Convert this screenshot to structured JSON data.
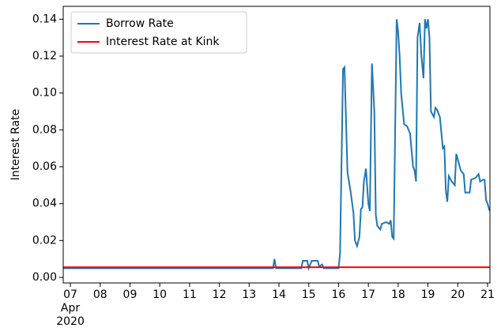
{
  "chart_data": {
    "type": "line",
    "ylabel": "Interest Rate",
    "series": [
      {
        "name": "Borrow Rate",
        "color": "#1f77b4",
        "x": [
          6.76,
          13.8,
          13.85,
          13.9,
          14.75,
          14.8,
          14.95,
          15.0,
          15.1,
          15.3,
          15.35,
          15.45,
          15.5,
          16.0,
          16.05,
          16.15,
          16.2,
          16.3,
          16.4,
          16.5,
          16.55,
          16.62,
          16.7,
          16.75,
          16.8,
          16.85,
          16.92,
          17.0,
          17.05,
          17.12,
          17.2,
          17.25,
          17.3,
          17.4,
          17.45,
          17.6,
          17.7,
          17.75,
          17.8,
          17.85,
          17.95,
          18.0,
          18.05,
          18.1,
          18.2,
          18.3,
          18.4,
          18.5,
          18.55,
          18.6,
          18.65,
          18.72,
          18.78,
          18.85,
          18.9,
          18.95,
          19.0,
          19.05,
          19.1,
          19.2,
          19.25,
          19.3,
          19.4,
          19.5,
          19.55,
          19.6,
          19.65,
          19.7,
          19.8,
          19.9,
          19.95,
          20.0,
          20.1,
          20.2,
          20.25,
          20.4,
          20.45,
          20.6,
          20.7,
          20.75,
          20.85,
          20.9,
          20.95,
          21.0,
          21.05,
          21.08
        ],
        "values": [
          0.005,
          0.005,
          0.01,
          0.005,
          0.005,
          0.009,
          0.009,
          0.005,
          0.009,
          0.009,
          0.006,
          0.007,
          0.005,
          0.005,
          0.013,
          0.113,
          0.114,
          0.057,
          0.047,
          0.035,
          0.02,
          0.017,
          0.022,
          0.037,
          0.038,
          0.052,
          0.059,
          0.04,
          0.036,
          0.116,
          0.09,
          0.034,
          0.028,
          0.026,
          0.029,
          0.03,
          0.029,
          0.031,
          0.022,
          0.021,
          0.14,
          0.133,
          0.12,
          0.1,
          0.083,
          0.082,
          0.078,
          0.06,
          0.058,
          0.052,
          0.13,
          0.138,
          0.12,
          0.108,
          0.14,
          0.135,
          0.14,
          0.13,
          0.09,
          0.087,
          0.092,
          0.091,
          0.087,
          0.07,
          0.071,
          0.047,
          0.041,
          0.055,
          0.052,
          0.05,
          0.067,
          0.064,
          0.058,
          0.056,
          0.046,
          0.046,
          0.053,
          0.054,
          0.056,
          0.052,
          0.053,
          0.053,
          0.042,
          0.04,
          0.037,
          0.036
        ]
      },
      {
        "name": "Interest Rate at Kink",
        "color": "#ff0000",
        "x": [
          6.76,
          21.08
        ],
        "values": [
          0.0055,
          0.0055
        ]
      }
    ],
    "xlim": [
      6.76,
      21.08
    ],
    "xticks": [
      {
        "value": 7,
        "label": "07"
      },
      {
        "value": 8,
        "label": "08"
      },
      {
        "value": 9,
        "label": "09"
      },
      10,
      11,
      12,
      13,
      14,
      15,
      16,
      17,
      18,
      19,
      20,
      21
    ],
    "x_date_labels": [
      "Apr",
      "2020"
    ],
    "ylim": [
      -0.003,
      0.147
    ],
    "yticks": [
      {
        "value": 0,
        "label": "0.00"
      },
      {
        "value": 0.02,
        "label": "0.02"
      },
      {
        "value": 0.04,
        "label": "0.04"
      },
      {
        "value": 0.06,
        "label": "0.06"
      },
      {
        "value": 0.08,
        "label": "0.08"
      },
      {
        "value": 0.1,
        "label": "0.10"
      },
      {
        "value": 0.12,
        "label": "0.12"
      },
      {
        "value": 0.14,
        "label": "0.14"
      }
    ],
    "legend": "upper left",
    "grid": false
  }
}
